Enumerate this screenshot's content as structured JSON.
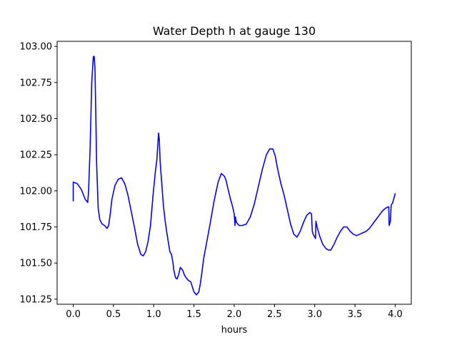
{
  "chart_data": {
    "type": "line",
    "title": "Water Depth h at gauge 130",
    "xlabel": "hours",
    "ylabel": "",
    "xlim": [
      -0.2,
      4.2
    ],
    "ylim": [
      101.215,
      103.035
    ],
    "x_ticks": [
      0.0,
      0.5,
      1.0,
      1.5,
      2.0,
      2.5,
      3.0,
      3.5,
      4.0
    ],
    "x_tick_labels": [
      "0.0",
      "0.5",
      "1.0",
      "1.5",
      "2.0",
      "2.5",
      "3.0",
      "3.5",
      "4.0"
    ],
    "y_ticks": [
      101.25,
      101.5,
      101.75,
      102.0,
      102.25,
      102.5,
      102.75,
      103.0
    ],
    "y_tick_labels": [
      "101.25",
      "101.50",
      "101.75",
      "102.00",
      "102.25",
      "102.50",
      "102.75",
      "103.00"
    ],
    "grid": false,
    "series": [
      {
        "color": "#0000ff",
        "x": [
          0.0,
          0.0,
          0.05,
          0.1,
          0.15,
          0.18,
          0.19,
          0.21,
          0.23,
          0.25,
          0.26,
          0.27,
          0.28,
          0.29,
          0.31,
          0.33,
          0.36,
          0.39,
          0.42,
          0.44,
          0.46,
          0.48,
          0.52,
          0.56,
          0.6,
          0.64,
          0.68,
          0.72,
          0.76,
          0.8,
          0.84,
          0.87,
          0.9,
          0.93,
          0.96,
          0.99,
          1.02,
          1.04,
          1.06,
          1.07,
          1.08,
          1.1,
          1.12,
          1.14,
          1.16,
          1.18,
          1.2,
          1.22,
          1.24,
          1.25,
          1.27,
          1.29,
          1.31,
          1.33,
          1.36,
          1.38,
          1.4,
          1.43,
          1.46,
          1.5,
          1.53,
          1.56,
          1.58,
          1.6,
          1.62,
          1.65,
          1.7,
          1.75,
          1.8,
          1.84,
          1.88,
          1.9,
          1.92,
          1.95,
          1.98,
          2.0,
          2.01,
          2.015,
          2.02,
          2.03,
          2.06,
          2.1,
          2.15,
          2.2,
          2.25,
          2.3,
          2.35,
          2.4,
          2.44,
          2.48,
          2.51,
          2.54,
          2.58,
          2.62,
          2.66,
          2.7,
          2.74,
          2.78,
          2.82,
          2.86,
          2.9,
          2.94,
          2.96,
          2.97,
          2.98,
          3.0,
          3.01,
          3.015,
          3.03,
          3.06,
          3.1,
          3.14,
          3.17,
          3.2,
          3.24,
          3.28,
          3.32,
          3.36,
          3.4,
          3.44,
          3.48,
          3.52,
          3.56,
          3.6,
          3.64,
          3.68,
          3.72,
          3.76,
          3.8,
          3.84,
          3.88,
          3.92,
          3.925,
          3.94,
          3.95,
          3.97,
          3.98,
          4.0
        ],
        "y": [
          101.93,
          102.06,
          102.05,
          102.01,
          101.94,
          101.92,
          101.99,
          102.3,
          102.75,
          102.93,
          102.93,
          102.85,
          102.55,
          102.2,
          101.88,
          101.8,
          101.77,
          101.76,
          101.74,
          101.76,
          101.84,
          101.94,
          102.04,
          102.08,
          102.09,
          102.05,
          101.97,
          101.86,
          101.75,
          101.63,
          101.56,
          101.55,
          101.58,
          101.65,
          101.76,
          101.96,
          102.13,
          102.22,
          102.4,
          102.35,
          102.2,
          102.05,
          101.9,
          101.8,
          101.72,
          101.65,
          101.58,
          101.56,
          101.5,
          101.45,
          101.4,
          101.39,
          101.42,
          101.47,
          101.45,
          101.42,
          101.4,
          101.38,
          101.37,
          101.3,
          101.28,
          101.3,
          101.36,
          101.44,
          101.53,
          101.62,
          101.77,
          101.93,
          102.06,
          102.12,
          102.1,
          102.07,
          102.02,
          101.95,
          101.89,
          101.84,
          101.76,
          101.82,
          101.8,
          101.78,
          101.76,
          101.76,
          101.77,
          101.82,
          101.91,
          102.03,
          102.15,
          102.25,
          102.29,
          102.29,
          102.24,
          102.15,
          102.05,
          101.97,
          101.87,
          101.77,
          101.7,
          101.68,
          101.72,
          101.78,
          101.83,
          101.85,
          101.84,
          101.72,
          101.7,
          101.68,
          101.67,
          101.79,
          101.75,
          101.69,
          101.63,
          101.6,
          101.59,
          101.59,
          101.63,
          101.68,
          101.72,
          101.75,
          101.75,
          101.72,
          101.7,
          101.69,
          101.7,
          101.71,
          101.72,
          101.74,
          101.77,
          101.8,
          101.83,
          101.86,
          101.88,
          101.89,
          101.76,
          101.79,
          101.9,
          101.92,
          101.94,
          101.98
        ]
      }
    ]
  }
}
